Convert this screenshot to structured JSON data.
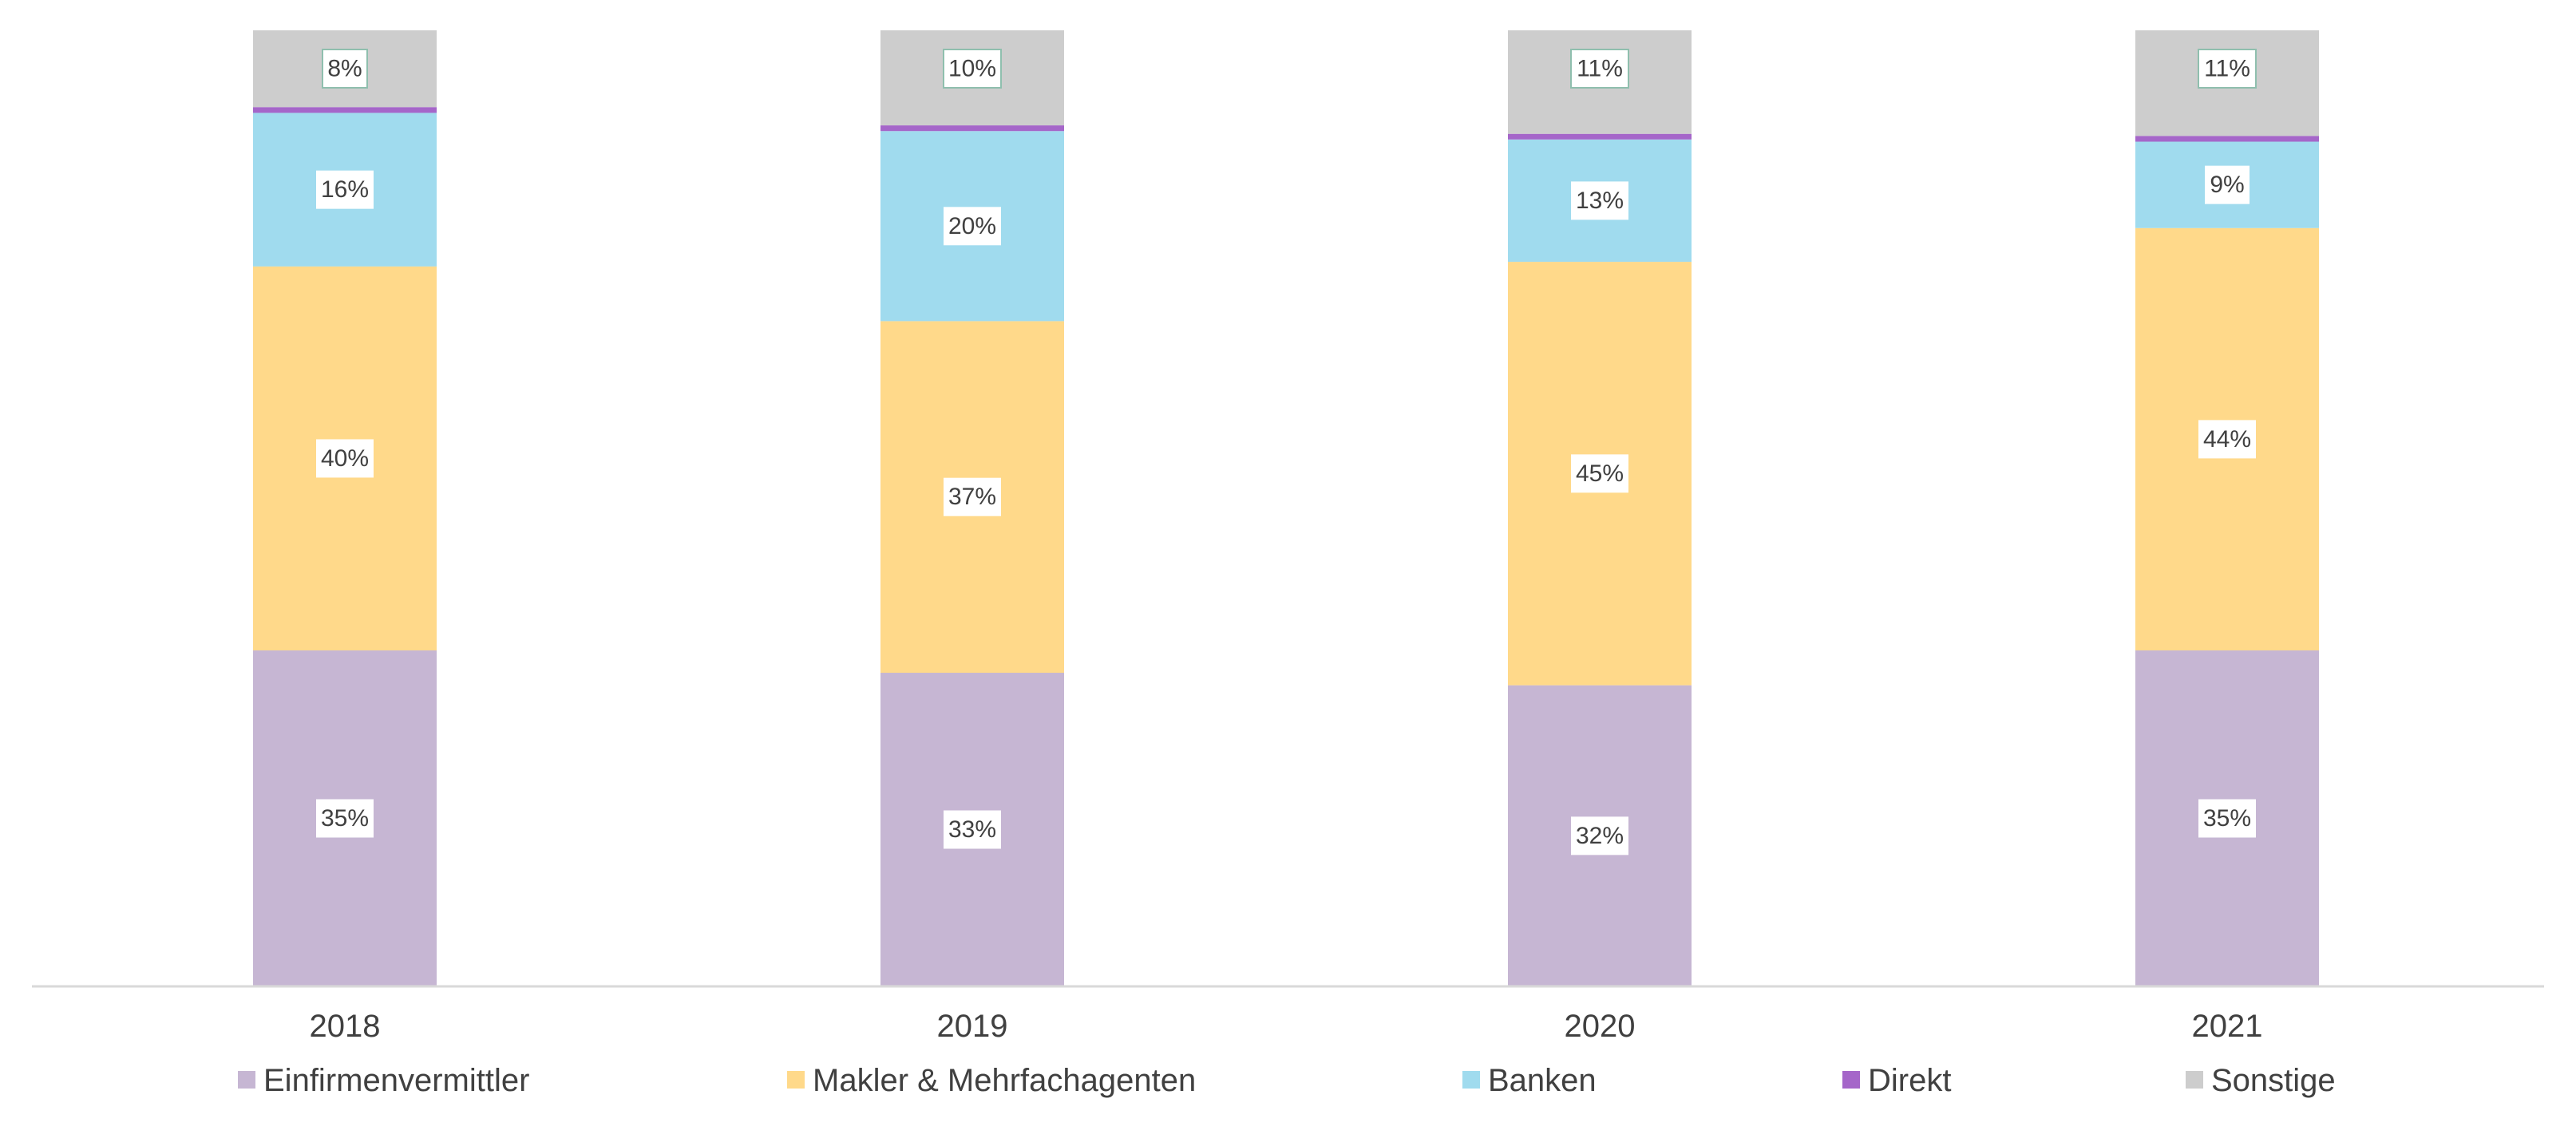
{
  "chart_data": {
    "type": "bar",
    "stacked": true,
    "normalized_percent": true,
    "categories": [
      "2018",
      "2019",
      "2020",
      "2021"
    ],
    "series": [
      {
        "name": "Einfirmenvermittler",
        "color": "#C6B6D3",
        "values": [
          35,
          33,
          32,
          35
        ],
        "labels": [
          "35%",
          "33%",
          "32%",
          "35%"
        ]
      },
      {
        "name": "Makler & Mehrfachagenten",
        "color": "#FFD98A",
        "values": [
          40,
          37,
          45,
          44
        ],
        "labels": [
          "40%",
          "37%",
          "45%",
          "44%"
        ]
      },
      {
        "name": "Banken",
        "color": "#A0DBEE",
        "values": [
          16,
          20,
          13,
          9
        ],
        "labels": [
          "16%",
          "20%",
          "13%",
          "9%"
        ]
      },
      {
        "name": "Direkt",
        "color": "#A566C9",
        "values": [
          0.6,
          0.6,
          0.6,
          0.6
        ],
        "labels": [
          "",
          "",
          "",
          ""
        ]
      },
      {
        "name": "Sonstige",
        "color": "#CDCDCD",
        "values": [
          8,
          10,
          11,
          11
        ],
        "labels": [
          "8%",
          "10%",
          "11%",
          "11%"
        ]
      }
    ],
    "ylim": [
      0,
      100
    ],
    "grid": false,
    "legend_position": "bottom",
    "title": "",
    "xlabel": "",
    "ylabel": ""
  }
}
